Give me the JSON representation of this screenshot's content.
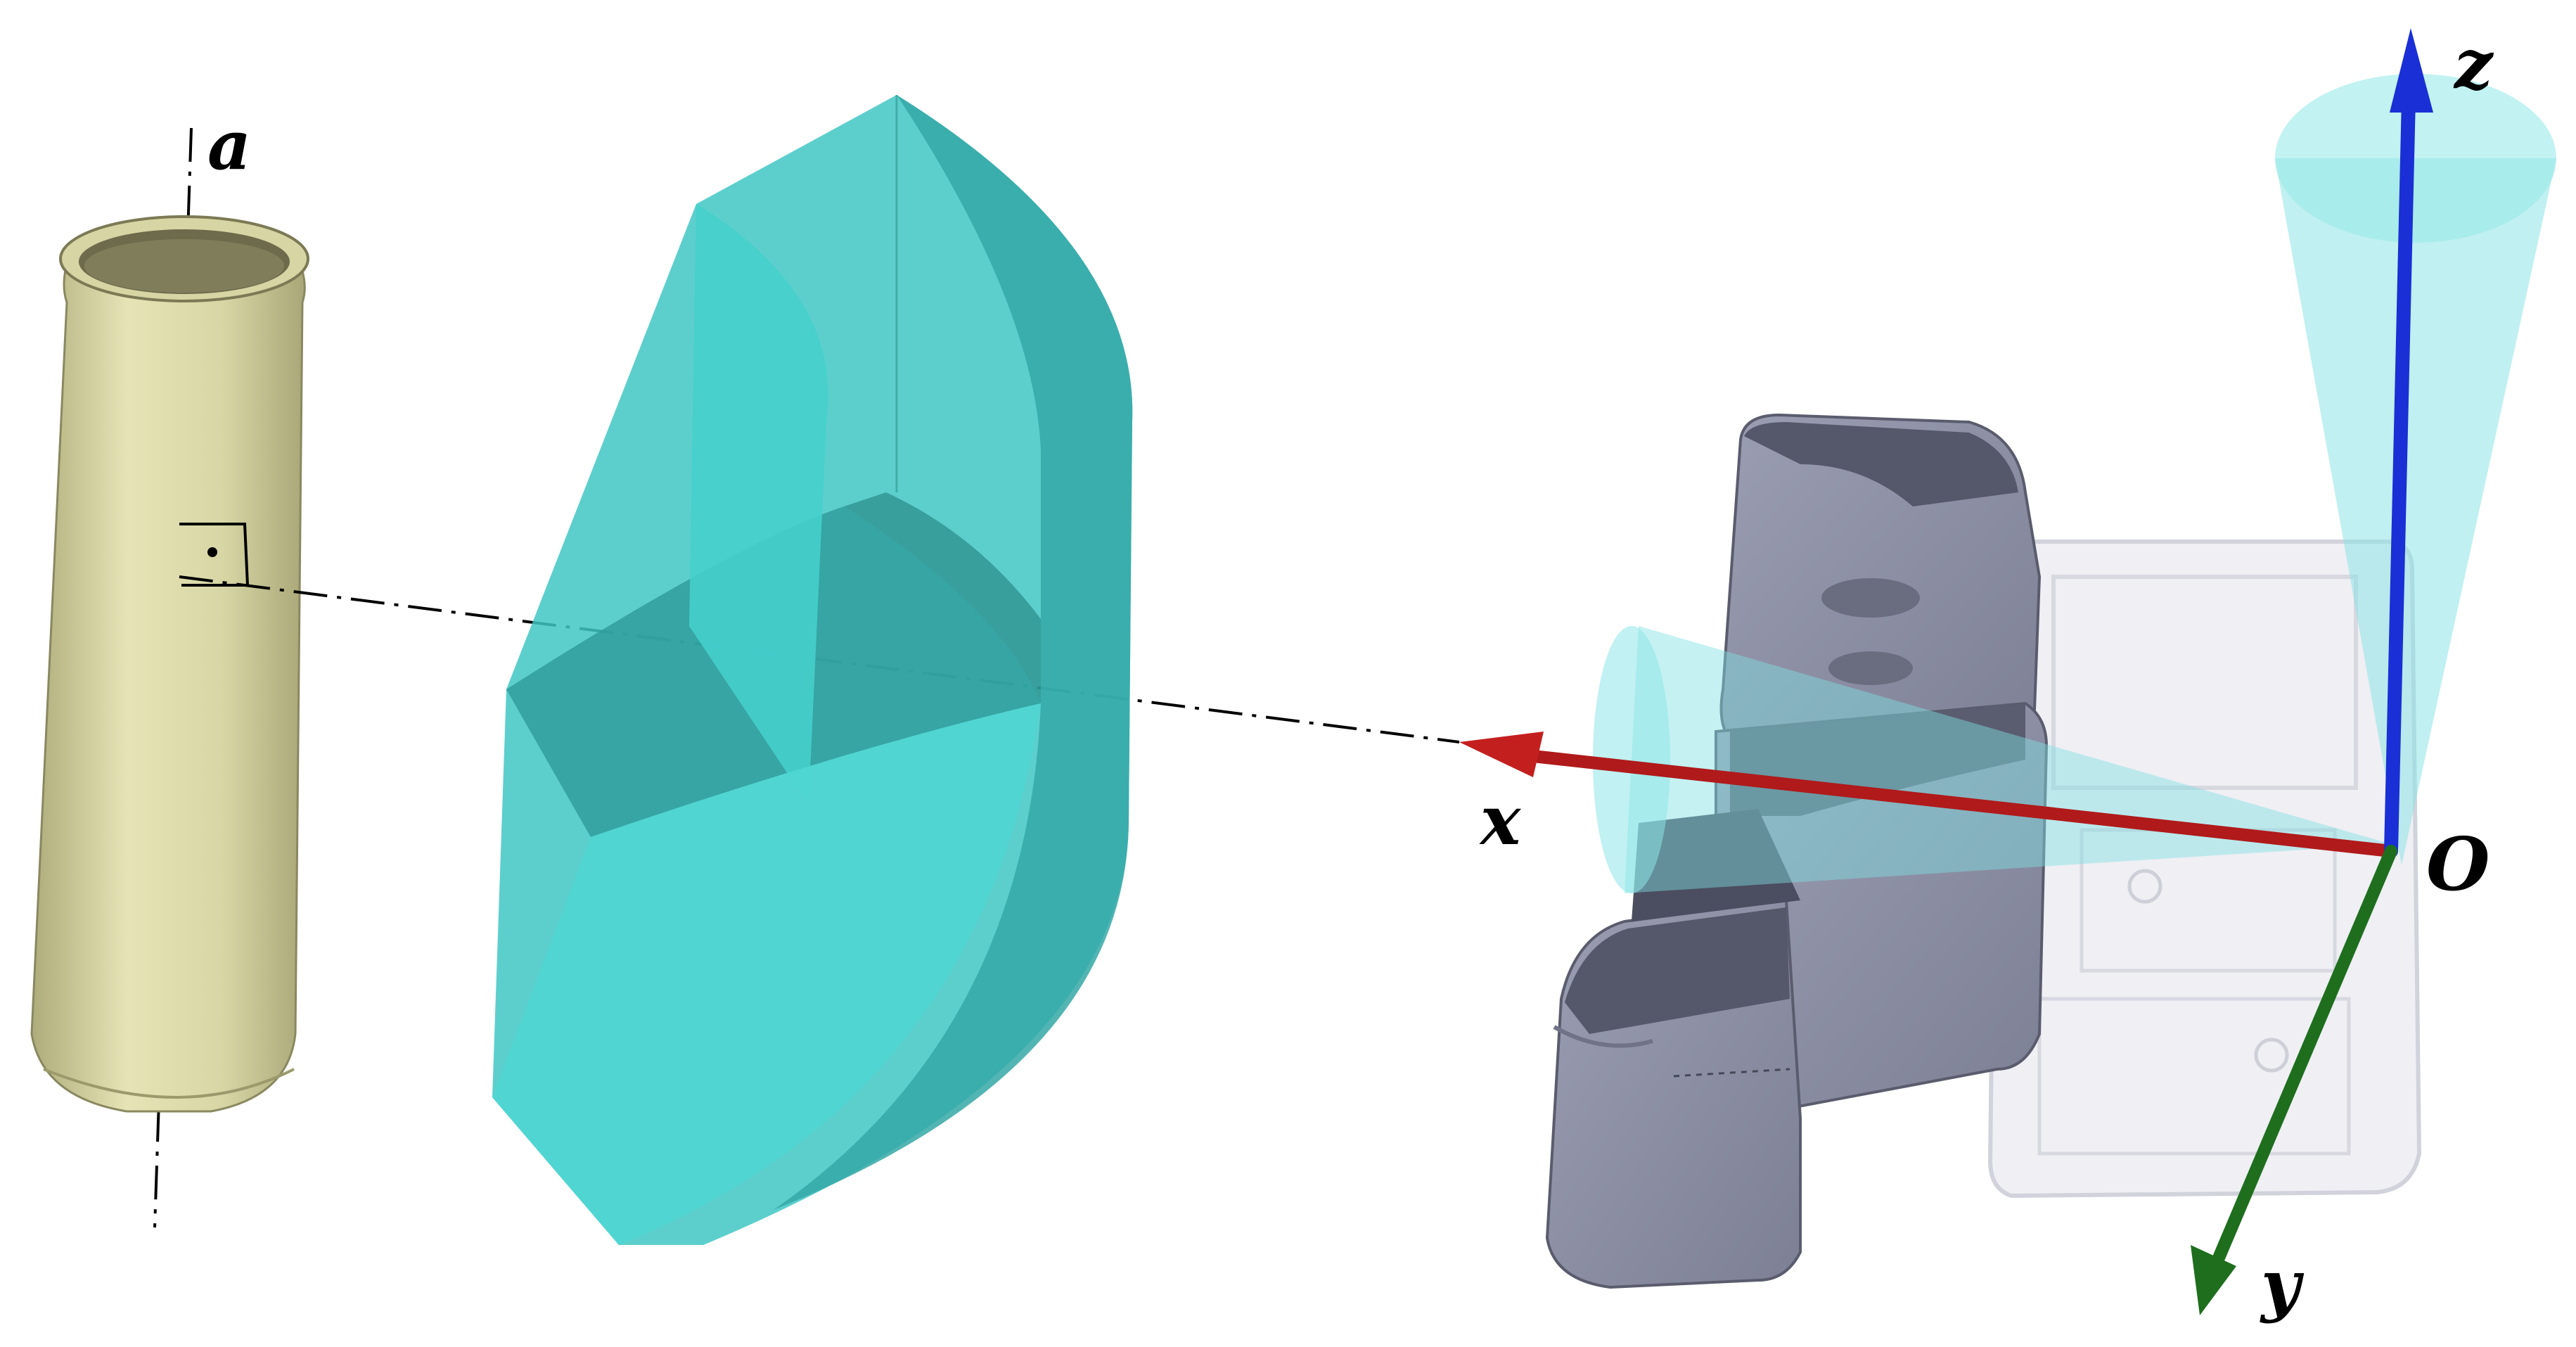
{
  "labels": {
    "axis_a": "a",
    "x": "x",
    "y": "y",
    "z": "z",
    "origin": "O"
  },
  "colors": {
    "can_body": "#d9d7a6",
    "can_shade": "#b8b684",
    "region_cyan": "#3fc7c4",
    "region_cyan_dark": "#2e9e9c",
    "robot_gray": "#8e91a6",
    "robot_dark": "#4e5061",
    "frame_gray": "#cfd1dc",
    "x_axis": "#b01a1a",
    "y_axis": "#1e6e1e",
    "z_axis": "#1a2fd6",
    "cone": "#7fe0e2"
  },
  "icons": {
    "can": "cylindrical-can-icon",
    "region": "curved-workspace-region-icon",
    "robot": "robot-gripper-icon"
  }
}
